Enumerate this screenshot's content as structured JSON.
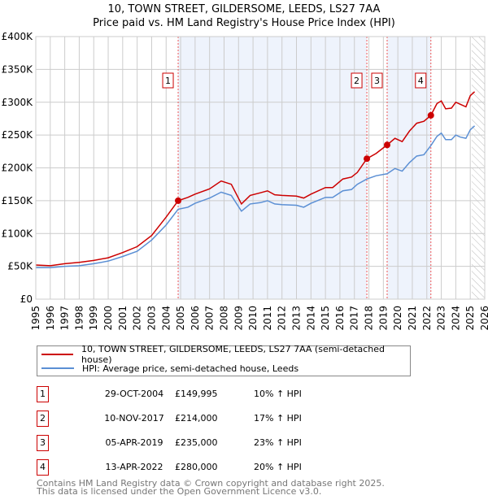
{
  "title_line1": "10, TOWN STREET, GILDERSOME, LEEDS, LS27 7AA",
  "title_line2": "Price paid vs. HM Land Registry's House Price Index (HPI)",
  "colors": {
    "property": "#cc0000",
    "hpi": "#5b8fd4",
    "shade": "#eef3fc"
  },
  "chart_data": {
    "type": "line",
    "xlim": [
      1995,
      2026
    ],
    "ylim": [
      0,
      400000
    ],
    "yticks": [
      0,
      50000,
      100000,
      150000,
      200000,
      250000,
      300000,
      350000,
      400000
    ],
    "ytick_labels": [
      "£0",
      "£50K",
      "£100K",
      "£150K",
      "£200K",
      "£250K",
      "£300K",
      "£350K",
      "£400K"
    ],
    "xticks": [
      1995,
      1996,
      1997,
      1998,
      1999,
      2000,
      2001,
      2002,
      2003,
      2004,
      2005,
      2006,
      2007,
      2008,
      2009,
      2010,
      2011,
      2012,
      2013,
      2014,
      2015,
      2016,
      2017,
      2018,
      2019,
      2020,
      2021,
      2022,
      2023,
      2024,
      2025,
      2026
    ],
    "grid": true,
    "shaded_ranges": [
      [
        2004.83,
        2017.86
      ],
      [
        2019.26,
        2022.28
      ]
    ],
    "forecast_hatch_from": 2025.1,
    "series": [
      {
        "name": "10, TOWN STREET, GILDERSOME, LEEDS, LS27 7AA (semi-detached house)",
        "x": [
          1995,
          1996,
          1997,
          1998,
          1999,
          2000,
          2001,
          2002,
          2003,
          2004,
          2004.83,
          2005.5,
          2006,
          2007,
          2007.8,
          2008.5,
          2009.2,
          2009.8,
          2010.5,
          2011,
          2011.5,
          2012,
          2013,
          2013.5,
          2014,
          2015,
          2015.5,
          2016.2,
          2016.8,
          2017.2,
          2017.86,
          2018.5,
          2019.26,
          2019.8,
          2020.3,
          2020.8,
          2021.3,
          2021.8,
          2022.28,
          2022.7,
          2023.0,
          2023.3,
          2023.7,
          2024.0,
          2024.3,
          2024.7,
          2025,
          2025.3
        ],
        "y": [
          52000,
          51000,
          54000,
          56000,
          59000,
          63000,
          71000,
          80000,
          97000,
          125000,
          149995,
          155000,
          160000,
          168000,
          180000,
          175000,
          145000,
          158000,
          162000,
          165000,
          159000,
          158000,
          157000,
          154000,
          160000,
          170000,
          170000,
          183000,
          186000,
          193000,
          214000,
          222000,
          235000,
          245000,
          240000,
          256000,
          268000,
          271000,
          280000,
          298000,
          302000,
          290000,
          291000,
          300000,
          297000,
          293000,
          310000,
          316000
        ]
      },
      {
        "name": "HPI: Average price, semi-detached house, Leeds",
        "x": [
          1995,
          1996,
          1997,
          1998,
          1999,
          2000,
          2001,
          2002,
          2003,
          2004,
          2004.83,
          2005.5,
          2006,
          2007,
          2007.8,
          2008.5,
          2009.2,
          2009.8,
          2010.5,
          2011,
          2011.5,
          2012,
          2013,
          2013.5,
          2014,
          2015,
          2015.5,
          2016.2,
          2016.8,
          2017.2,
          2017.86,
          2018.5,
          2019.26,
          2019.8,
          2020.3,
          2020.8,
          2021.3,
          2021.8,
          2022.28,
          2022.7,
          2023.0,
          2023.3,
          2023.7,
          2024.0,
          2024.3,
          2024.7,
          2025,
          2025.3
        ],
        "y": [
          48000,
          48000,
          50000,
          51000,
          54000,
          58000,
          65000,
          73000,
          90000,
          113000,
          137000,
          140000,
          146000,
          154000,
          163000,
          158000,
          134000,
          145000,
          147000,
          150000,
          145000,
          144000,
          143000,
          140000,
          146000,
          155000,
          155000,
          165000,
          167000,
          175000,
          183000,
          188000,
          191000,
          199000,
          195000,
          208000,
          218000,
          220000,
          234000,
          248000,
          253000,
          243000,
          243000,
          250000,
          247000,
          245000,
          258000,
          264000
        ]
      }
    ],
    "sales": [
      {
        "label": "1",
        "x": 2004.83,
        "y": 149995
      },
      {
        "label": "2",
        "x": 2017.86,
        "y": 214000
      },
      {
        "label": "3",
        "x": 2019.26,
        "y": 235000
      },
      {
        "label": "4",
        "x": 2022.28,
        "y": 280000
      }
    ]
  },
  "legend": {
    "property": "10, TOWN STREET, GILDERSOME, LEEDS, LS27 7AA (semi-detached house)",
    "hpi": "HPI: Average price, semi-detached house, Leeds"
  },
  "transactions": [
    {
      "num": "1",
      "date": "29-OCT-2004",
      "price": "£149,995",
      "hpi": "10% ↑ HPI"
    },
    {
      "num": "2",
      "date": "10-NOV-2017",
      "price": "£214,000",
      "hpi": "17% ↑ HPI"
    },
    {
      "num": "3",
      "date": "05-APR-2019",
      "price": "£235,000",
      "hpi": "23% ↑ HPI"
    },
    {
      "num": "4",
      "date": "13-APR-2022",
      "price": "£280,000",
      "hpi": "20% ↑ HPI"
    }
  ],
  "footer": {
    "line1": "Contains HM Land Registry data © Crown copyright and database right 2025.",
    "line2": "This data is licensed under the Open Government Licence v3.0."
  }
}
